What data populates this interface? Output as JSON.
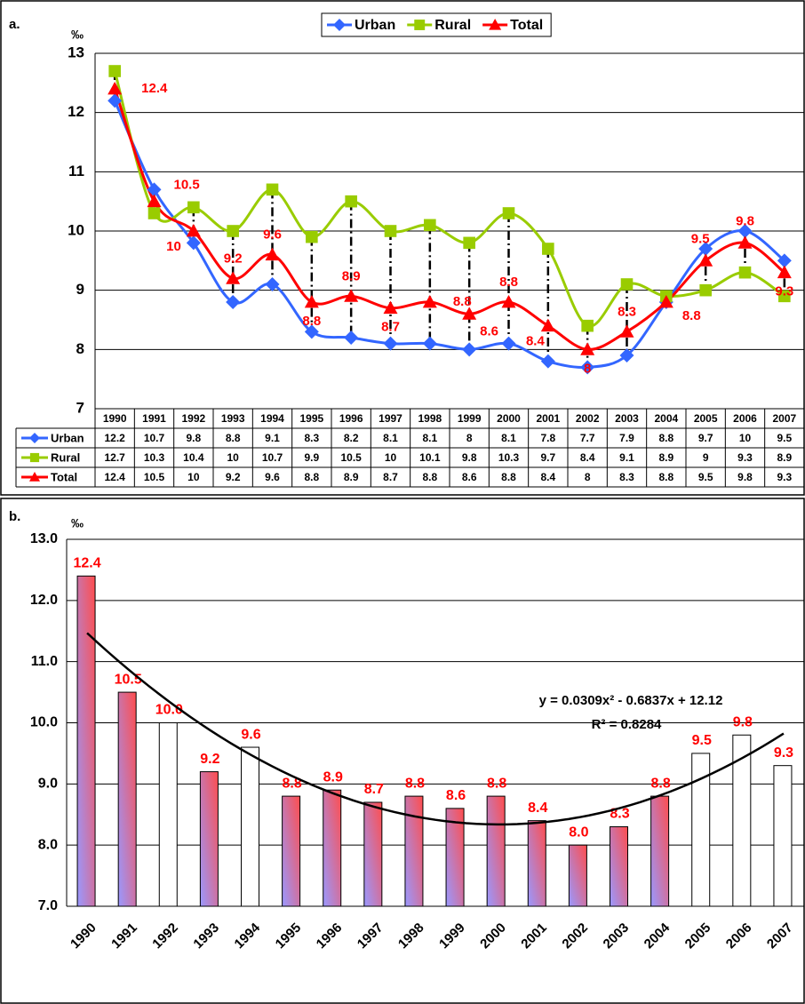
{
  "chart_data": [
    {
      "type": "line",
      "label": "a.",
      "unit": "‰",
      "categories": [
        "1990",
        "1991",
        "1992",
        "1993",
        "1994",
        "1995",
        "1996",
        "1997",
        "1998",
        "1999",
        "2000",
        "2001",
        "2002",
        "2003",
        "2004",
        "2005",
        "2006",
        "2007"
      ],
      "series": [
        {
          "name": "Urban",
          "color": "#3366ff",
          "marker": "diamond",
          "values": [
            12.2,
            10.7,
            9.8,
            8.8,
            9.1,
            8.3,
            8.2,
            8.1,
            8.1,
            8,
            8.1,
            7.8,
            7.7,
            7.9,
            8.8,
            9.7,
            10,
            9.5
          ]
        },
        {
          "name": "Rural",
          "color": "#99cc00",
          "marker": "square",
          "values": [
            12.7,
            10.3,
            10.4,
            10,
            10.7,
            9.9,
            10.5,
            10,
            10.1,
            9.8,
            10.3,
            9.7,
            8.4,
            9.1,
            8.9,
            9,
            9.3,
            8.9
          ]
        },
        {
          "name": "Total",
          "color": "#ff0000",
          "marker": "triangle",
          "data_labels": true,
          "values": [
            12.4,
            10.5,
            10,
            9.2,
            9.6,
            8.8,
            8.9,
            8.7,
            8.8,
            8.6,
            8.8,
            8.4,
            8,
            8.3,
            8.8,
            9.5,
            9.8,
            9.3
          ]
        }
      ],
      "ylim": [
        7,
        13
      ],
      "yticks": [
        7,
        8,
        9,
        10,
        11,
        12,
        13
      ],
      "grid": true,
      "legend": "top",
      "smooth": true,
      "drop_lines": true,
      "data_table": true
    },
    {
      "type": "bar",
      "label": "b.",
      "unit": "‰",
      "categories": [
        "1990",
        "1991",
        "1992",
        "1993",
        "1994",
        "1995",
        "1996",
        "1997",
        "1998",
        "1999",
        "2000",
        "2001",
        "2002",
        "2003",
        "2004",
        "2005",
        "2006",
        "2007"
      ],
      "values": [
        12.4,
        10.5,
        10,
        9.2,
        9.6,
        8.8,
        8.9,
        8.7,
        8.8,
        8.6,
        8.8,
        8.4,
        8,
        8.3,
        8.8,
        9.5,
        9.8,
        9.3
      ],
      "value_labels": [
        "12.4",
        "10.5",
        "10.0",
        "9.2",
        "9.6",
        "8.8",
        "8.9",
        "8.7",
        "8.8",
        "8.6",
        "8.8",
        "8.4",
        "8.0",
        "8.3",
        "8.8",
        "9.5",
        "9.8",
        "9.3"
      ],
      "fills": [
        "gradient",
        "gradient",
        "white",
        "gradient",
        "white",
        "gradient",
        "gradient",
        "gradient",
        "gradient",
        "gradient",
        "gradient",
        "gradient",
        "gradient",
        "gradient",
        "gradient",
        "white",
        "white",
        "white"
      ],
      "gradient": [
        "#ff4d4d",
        "#9999ff"
      ],
      "label_color": "#ff0000",
      "ylim": [
        7,
        13
      ],
      "yticks": [
        {
          "value": 7,
          "label": "7.0"
        },
        {
          "value": 8,
          "label": "8.0"
        },
        {
          "value": 9,
          "label": "9.0"
        },
        {
          "value": 10,
          "label": "10.0"
        },
        {
          "value": 11,
          "label": "11.0"
        },
        {
          "value": 12,
          "label": "12.0"
        },
        {
          "value": 13,
          "label": "13.0"
        }
      ],
      "grid": true,
      "trendline": {
        "coefficients": [
          12.12,
          -0.6837,
          0.0309
        ],
        "color": "#000000",
        "equation": "y = 0.0309x² - 0.6837x + 12.12",
        "r_squared": "R² = 0.8284"
      }
    }
  ]
}
